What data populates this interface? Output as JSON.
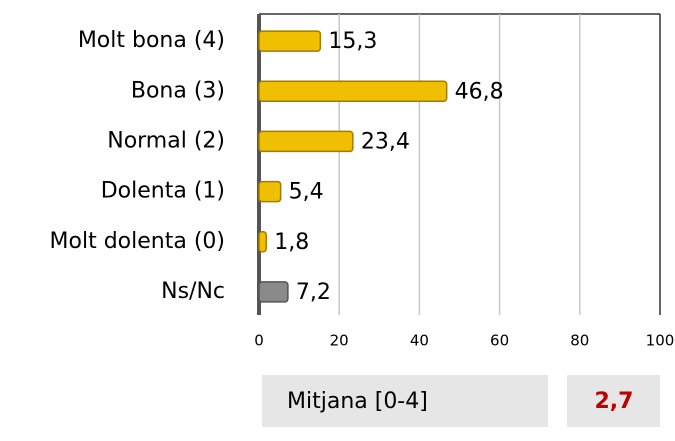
{
  "chart_data": {
    "type": "barh",
    "categories": [
      "Molt bona (4)",
      "Bona (3)",
      "Normal (2)",
      "Dolenta (1)",
      "Molt dolenta (0)",
      "Ns/Nc"
    ],
    "values": [
      15.3,
      46.8,
      23.4,
      5.4,
      1.8,
      7.2
    ],
    "value_labels": [
      "15,3",
      "46,8",
      "23,4",
      "5,4",
      "1,8",
      "7,2"
    ],
    "colors": [
      "#f0c000",
      "#f0c000",
      "#f0c000",
      "#f0c000",
      "#f0c000",
      "#8a8a8a"
    ],
    "xlim": [
      0,
      100
    ],
    "xticks": [
      0,
      20,
      40,
      60,
      80,
      100
    ],
    "grid": true,
    "mean": {
      "name": "Mitjana [0-4]",
      "value": 2.7,
      "label": "2,7"
    }
  }
}
